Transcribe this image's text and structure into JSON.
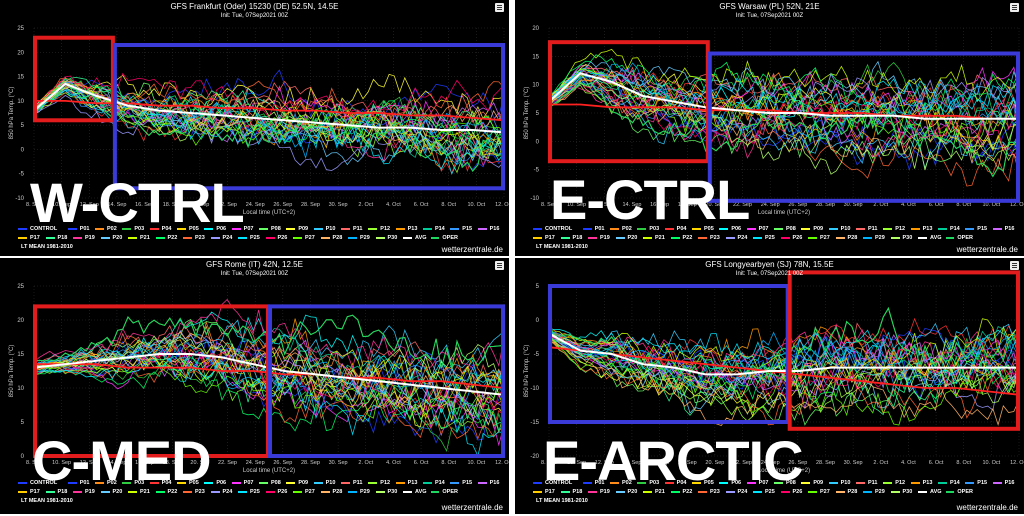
{
  "legend_rows": [
    [
      "CONTROL",
      "P01",
      "P02",
      "P03",
      "P04",
      "P05",
      "P06",
      "P07",
      "P08",
      "P09",
      "P10",
      "P11",
      "P12",
      "P13",
      "P14",
      "P15",
      "P16"
    ],
    [
      "P17",
      "P18",
      "P19",
      "P20",
      "P21",
      "P22",
      "P23",
      "P24",
      "P25",
      "P26",
      "P27",
      "P28",
      "P29",
      "P30",
      "AVG",
      "OPER"
    ],
    [
      "LT MEAN 1981-2010"
    ]
  ],
  "credit": "wetterzentrale.de",
  "xlabel": "Local time (UTC+2)",
  "ylabel": "850 hPa Temp. (°C)",
  "init": "Init: Tue, 07Sep2021 00Z",
  "chart_data": [
    {
      "type": "line",
      "title": "GFS Frankfurt (Oder) 15230 (DE) 52.5N, 14.5E",
      "overlay_label": "W-CTRL",
      "ylim": [
        -10,
        25
      ],
      "yticks": [
        -10,
        -5,
        0,
        5,
        10,
        15,
        20,
        25
      ],
      "xticks": [
        "8. Sep",
        "10. Sep",
        "12. Sep",
        "14. Sep",
        "16. Sep",
        "18. Sep",
        "20. Sep",
        "22. Sep",
        "24. Sep",
        "26. Sep",
        "28. Sep",
        "30. Sep",
        "2. Oct",
        "4. Oct",
        "6. Oct",
        "8. Oct",
        "10. Oct",
        "12. Oct"
      ],
      "avg": [
        8,
        13.5,
        11,
        9,
        8,
        7.5,
        7,
        6.5,
        6,
        5.5,
        5,
        4.5,
        4.5,
        4,
        4,
        3.5
      ],
      "lt_mean": [
        10,
        10,
        9.5,
        9.5,
        9,
        9,
        8.5,
        8.5,
        8,
        8,
        7.5,
        7.5,
        7,
        7,
        6.5,
        6
      ],
      "spread": [
        1,
        2,
        4,
        5,
        5.5,
        6,
        6,
        6.5,
        6.5,
        7,
        7,
        7,
        7.5,
        7.5,
        7.5,
        7.5
      ],
      "boxes": [
        {
          "color": "#e21c1c",
          "x0": 0.0,
          "x1": 0.17,
          "y0": 23,
          "y1": 6
        },
        {
          "color": "#3a3ad8",
          "x0": 0.17,
          "x1": 1.0,
          "y0": 21.5,
          "y1": -8
        }
      ]
    },
    {
      "type": "line",
      "title": "GFS Warsaw (PL) 52N, 21E",
      "overlay_label": "E-CTRL",
      "ylim": [
        -10,
        20
      ],
      "yticks": [
        -10,
        -5,
        0,
        5,
        10,
        15,
        20
      ],
      "xticks": [
        "8. Sep",
        "10. Sep",
        "12. Sep",
        "14. Sep",
        "16. Sep",
        "18. Sep",
        "20. Sep",
        "22. Sep",
        "24. Sep",
        "26. Sep",
        "28. Sep",
        "30. Sep",
        "2. Oct",
        "4. Oct",
        "6. Oct",
        "8. Oct",
        "10. Oct",
        "12. Oct"
      ],
      "avg": [
        7,
        12,
        10.5,
        8,
        7,
        6,
        5.5,
        5,
        5,
        4.5,
        4.5,
        4.5,
        4,
        4,
        4,
        4
      ],
      "lt_mean": [
        6.5,
        6.5,
        6,
        6,
        6,
        5.5,
        5.5,
        5.5,
        5,
        5,
        5,
        4.5,
        4.5,
        4.5,
        4,
        4
      ],
      "spread": [
        1,
        2,
        4,
        5,
        5.5,
        6,
        6.5,
        6.5,
        7,
        7,
        7,
        7,
        7.5,
        7.5,
        7.5,
        7.5
      ],
      "boxes": [
        {
          "color": "#e21c1c",
          "x0": 0.0,
          "x1": 0.34,
          "y0": 17.5,
          "y1": -3.5
        },
        {
          "color": "#3a3ad8",
          "x0": 0.34,
          "x1": 1.0,
          "y0": 15.5,
          "y1": -10.5
        }
      ]
    },
    {
      "type": "line",
      "title": "GFS Rome (IT) 42N, 12.5E",
      "overlay_label": "C-MED",
      "ylim": [
        0,
        25
      ],
      "yticks": [
        0,
        5,
        10,
        15,
        20,
        25
      ],
      "xticks": [
        "8. Sep",
        "10. Sep",
        "12. Sep",
        "14. Sep",
        "16. Sep",
        "18. Sep",
        "20. Sep",
        "22. Sep",
        "24. Sep",
        "26. Sep",
        "28. Sep",
        "30. Sep",
        "2. Oct",
        "4. Oct",
        "6. Oct",
        "8. Oct",
        "10. Oct",
        "12. Oct"
      ],
      "avg": [
        13,
        13.5,
        14,
        14.5,
        15,
        15,
        14.5,
        13.5,
        12.5,
        12,
        11.5,
        11,
        10.5,
        10,
        9.5,
        9
      ],
      "lt_mean": [
        13.5,
        13.5,
        13.5,
        13,
        13,
        13,
        12.5,
        12.5,
        12,
        12,
        11.5,
        11.5,
        11,
        11,
        10.5,
        10
      ],
      "spread": [
        1,
        1.5,
        2.5,
        3.5,
        4,
        4.5,
        5,
        5.5,
        5.5,
        6,
        6,
        6,
        6.5,
        6.5,
        6.5,
        6.5
      ],
      "boxes": [
        {
          "color": "#e21c1c",
          "x0": 0.0,
          "x1": 0.5,
          "y0": 22,
          "y1": 0
        },
        {
          "color": "#3a3ad8",
          "x0": 0.5,
          "x1": 1.0,
          "y0": 22,
          "y1": 0
        }
      ]
    },
    {
      "type": "line",
      "title": "GFS Longyearbyen (SJ) 78N, 15.5E",
      "overlay_label": "E-ARCTIC",
      "ylim": [
        -20,
        5
      ],
      "yticks": [
        -20,
        -15,
        -10,
        -5,
        0,
        5
      ],
      "xticks": [
        "8. Sep",
        "10. Sep",
        "12. Sep",
        "14. Sep",
        "16. Sep",
        "18. Sep",
        "20. Sep",
        "22. Sep",
        "24. Sep",
        "26. Sep",
        "28. Sep",
        "30. Sep",
        "2. Oct",
        "4. Oct",
        "6. Oct",
        "8. Oct",
        "10. Oct",
        "12. Oct"
      ],
      "avg": [
        -2,
        -4.5,
        -5,
        -6.5,
        -7,
        -8,
        -8,
        -7.5,
        -7.5,
        -7,
        -7,
        -7,
        -7,
        -7,
        -7,
        -7
      ],
      "lt_mean": [
        -4,
        -4.5,
        -5,
        -5.5,
        -6,
        -6.5,
        -7,
        -7.5,
        -8,
        -8.5,
        -9,
        -9.5,
        -10,
        -10,
        -10.5,
        -11
      ],
      "spread": [
        1,
        2,
        3,
        4,
        4.5,
        5,
        5,
        5.5,
        5.5,
        6,
        6,
        6,
        6,
        6,
        6,
        6
      ],
      "boxes": [
        {
          "color": "#3a3ad8",
          "x0": 0.0,
          "x1": 0.51,
          "y0": 5,
          "y1": -15
        },
        {
          "color": "#e21c1c",
          "x0": 0.51,
          "x1": 1.0,
          "y0": 7,
          "y1": -16
        }
      ]
    }
  ]
}
